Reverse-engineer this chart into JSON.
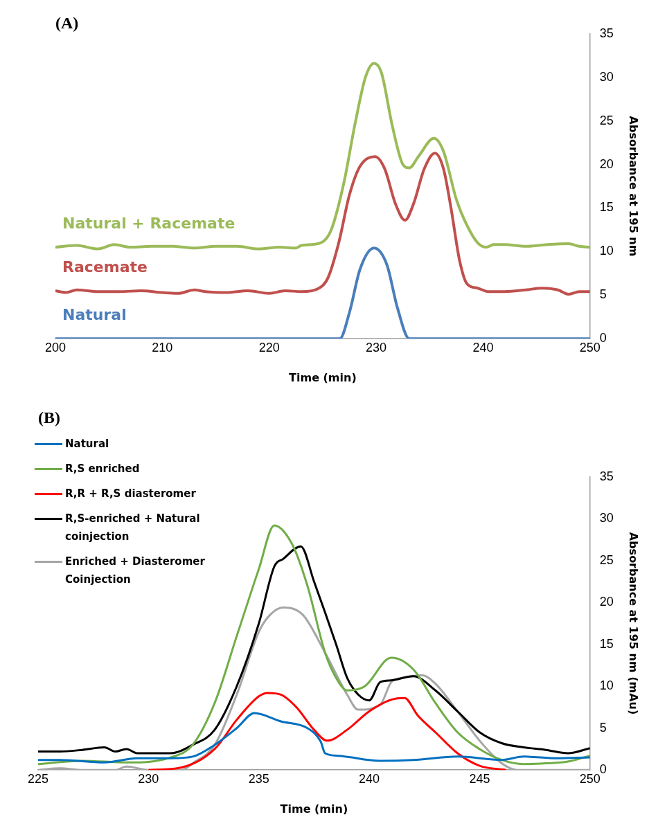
{
  "chart_data": [
    {
      "type": "line",
      "title": "(A)",
      "xlabel": "Time (min)",
      "ylabel": "Absorbance at 195 nm",
      "xlim": [
        200,
        250
      ],
      "xticks": [
        200,
        210,
        220,
        230,
        240,
        250
      ],
      "ylim": [
        0,
        35
      ],
      "yticks": [
        0,
        5,
        10,
        15,
        20,
        25,
        30,
        35
      ],
      "grid": false,
      "legend": false,
      "marker": "none",
      "series": [
        {
          "name": "Natural",
          "color": "#4a7ebb",
          "x": [
            200,
            226.6,
            227.5,
            228.5,
            229.8,
            231,
            232,
            233.1,
            250
          ],
          "values": [
            0,
            0,
            3,
            8,
            10.4,
            8.5,
            3.5,
            0,
            0
          ]
        },
        {
          "name": "Racemate",
          "color": "#c0504d",
          "x": [
            200,
            201,
            202,
            204,
            206,
            208,
            210,
            211.5,
            213,
            214,
            216,
            218,
            220,
            221.5,
            223,
            224.5,
            225.5,
            226.5,
            227.5,
            228.5,
            229.9,
            230.8,
            231.8,
            232.7,
            233.5,
            234.5,
            235.5,
            236.3,
            237,
            237.8,
            238.5,
            239.5,
            240.5,
            242,
            244,
            245.5,
            247,
            248,
            249,
            250
          ],
          "values": [
            5.5,
            5.3,
            5.6,
            5.4,
            5.4,
            5.5,
            5.3,
            5.2,
            5.6,
            5.4,
            5.3,
            5.5,
            5.2,
            5.5,
            5.4,
            5.7,
            7,
            11,
            16.5,
            19.8,
            20.9,
            19.5,
            15.5,
            13.6,
            15.5,
            19.5,
            21.3,
            19.5,
            15,
            9,
            6.3,
            5.8,
            5.4,
            5.4,
            5.6,
            5.8,
            5.6,
            5.1,
            5.4,
            5.4
          ]
        },
        {
          "name": "Natural + Racemate",
          "color": "#9bbb59",
          "x": [
            200,
            202,
            204,
            205.5,
            207,
            209,
            211,
            213,
            215,
            217,
            219,
            221,
            222.5,
            223,
            224.8,
            225.8,
            227,
            228,
            229,
            229.8,
            230.5,
            231.5,
            232.5,
            233.1,
            234,
            235.4,
            236.3,
            237.5,
            238.5,
            239.5,
            240.3,
            241,
            242,
            244,
            246,
            248,
            249,
            250
          ],
          "values": [
            10.5,
            10.7,
            10.3,
            10.8,
            10.5,
            10.6,
            10.6,
            10.4,
            10.6,
            10.6,
            10.3,
            10.5,
            10.4,
            10.7,
            11,
            12.5,
            18,
            24.5,
            30,
            31.6,
            30.5,
            24.5,
            20,
            19.6,
            21,
            23,
            21.5,
            16,
            13,
            11,
            10.5,
            10.8,
            10.8,
            10.6,
            10.8,
            10.9,
            10.6,
            10.5
          ]
        }
      ]
    },
    {
      "type": "line",
      "title": "(B)",
      "xlabel": "Time (min)",
      "ylabel": "Absorbance at 195 nm (mAu)",
      "xlim": [
        225,
        250
      ],
      "xticks": [
        225,
        230,
        235,
        240,
        245,
        250
      ],
      "ylim": [
        0,
        35
      ],
      "yticks": [
        0,
        5,
        10,
        15,
        20,
        25,
        30,
        35
      ],
      "grid": false,
      "legend": "top left",
      "marker": "none",
      "series": [
        {
          "name": "Natural",
          "color": "#0070c0",
          "x": [
            225,
            226,
            228,
            229.5,
            231,
            232,
            233,
            234,
            234.8,
            236,
            237.2,
            237.8,
            238,
            238.6,
            240.5,
            242,
            244,
            246,
            247,
            248.5,
            250
          ],
          "values": [
            1.2,
            1.2,
            0.9,
            1.4,
            1.4,
            1.6,
            3,
            5,
            6.8,
            5.8,
            5,
            3.4,
            2,
            1.7,
            1.1,
            1.2,
            1.6,
            1.2,
            1.6,
            1.4,
            1.5
          ]
        },
        {
          "name": "R,S enriched",
          "color": "#70ad47",
          "x": [
            225,
            227,
            229,
            231,
            232,
            233,
            234,
            235,
            235.7,
            236.5,
            237.2,
            238,
            238.5,
            239,
            239.8,
            241,
            242,
            243,
            244,
            245,
            246,
            247,
            248,
            249,
            250
          ],
          "values": [
            0.7,
            1.1,
            0.9,
            1.5,
            3,
            8,
            16,
            24,
            29.2,
            27,
            22,
            14,
            11,
            9.5,
            10,
            13.4,
            12,
            8,
            4.5,
            2.5,
            1.2,
            0.7,
            0.8,
            1,
            1.7
          ]
        },
        {
          "name": "R,R + R,S diasteromer",
          "color": "#ff0000",
          "x": [
            230,
            231.5,
            233,
            234,
            235,
            235.4,
            236,
            236.7,
            237.5,
            238.1,
            239,
            240,
            241,
            241.6,
            242.2,
            243,
            244,
            245,
            246.2
          ],
          "values": [
            0,
            0.3,
            2.5,
            6,
            8.8,
            9.2,
            9,
            7.5,
            4.8,
            3.5,
            4.8,
            7,
            8.4,
            8.6,
            6.5,
            4.5,
            2,
            0.5,
            0
          ]
        },
        {
          "name": "R,S-enriched + Natural coinjection",
          "color": "#000000",
          "x": [
            225,
            226,
            227,
            228,
            228.5,
            229,
            229.5,
            231,
            232,
            233,
            234,
            235,
            235.7,
            236.1,
            236.9,
            237.5,
            238.5,
            239,
            239.5,
            240,
            240.5,
            241,
            242,
            243,
            244,
            245,
            246,
            247,
            248,
            249,
            250
          ],
          "values": [
            2.2,
            2.2,
            2.4,
            2.7,
            2.2,
            2.5,
            2,
            2,
            3,
            4.8,
            10,
            17.5,
            24.3,
            25.2,
            26.7,
            22.5,
            15,
            11,
            9,
            8.3,
            10.5,
            10.7,
            11.2,
            9.5,
            7,
            4.5,
            3.2,
            2.7,
            2.4,
            2,
            2.6
          ]
        },
        {
          "name": "Enriched + Diasteromer Coinjection",
          "color": "#a6a6a6",
          "x": [
            225,
            226,
            227,
            228.5,
            229,
            230,
            231.5,
            232,
            233,
            234,
            235,
            235.5,
            236.1,
            237,
            238,
            239,
            239.5,
            240.5,
            241,
            241.5,
            242.4,
            243,
            244,
            245,
            246,
            246.7,
            250
          ],
          "values": [
            0,
            0.2,
            0,
            0,
            0.4,
            0,
            0,
            0.8,
            3,
            9,
            16.5,
            18.5,
            19.4,
            18.5,
            14,
            9,
            7.2,
            7.8,
            10.5,
            11,
            11.3,
            10.3,
            7,
            3.5,
            0.8,
            0,
            0
          ]
        }
      ]
    }
  ]
}
